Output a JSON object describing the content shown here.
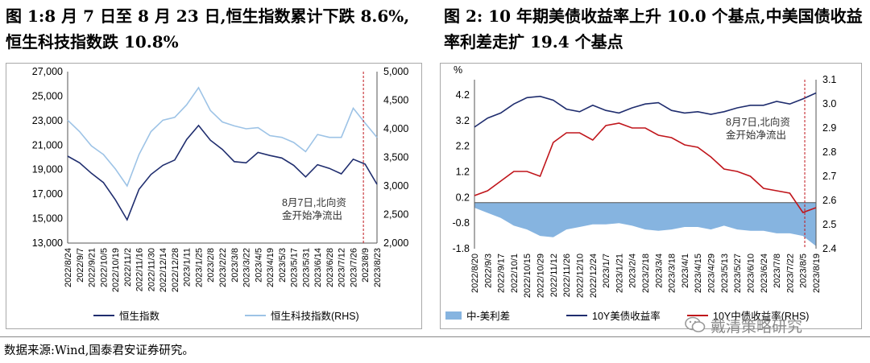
{
  "titles": {
    "left": "图 1:8 月 7 日至 8 月 23 日,恒生指数累计下跌 8.6%,恒生科技指数跌 10.8%",
    "right": "图 2:  10 年期美债收益率上升 10.0 个基点,中美国债收益率利差走扩 19.4 个基点"
  },
  "source": "数据来源:Wind,国泰君安证券研究。",
  "watermark": "戴清策略研究",
  "chart_data": [
    {
      "type": "line",
      "dates": [
        "2022/8/24",
        "2022/9/7",
        "2022/9/21",
        "2022/10/5",
        "2022/10/19",
        "2022/11/2",
        "2022/11/16",
        "2022/11/30",
        "2022/12/14",
        "2022/12/28",
        "2023/1/11",
        "2023/1/25",
        "2023/2/8",
        "2023/2/22",
        "2023/3/8",
        "2023/3/22",
        "2023/4/5",
        "2023/4/19",
        "2023/5/3",
        "2023/5/17",
        "2023/5/31",
        "2023/6/14",
        "2023/6/28",
        "2023/7/12",
        "2023/7/26",
        "2023/8/9",
        "2023/8/23"
      ],
      "series": [
        {
          "name": "恒生指数",
          "axis": "left",
          "color": "#1f2d6e",
          "values": [
            20100,
            19550,
            18700,
            17950,
            16550,
            14900,
            17400,
            18600,
            19350,
            19780,
            21450,
            22600,
            21400,
            20650,
            19650,
            19550,
            20400,
            20150,
            19950,
            19350,
            18400,
            19400,
            19100,
            18650,
            19850,
            19450,
            17800
          ]
        },
        {
          "name": "恒生科技指数(RHS)",
          "axis": "right",
          "color": "#9dc3e6",
          "values": [
            4150,
            3950,
            3700,
            3550,
            3300,
            3000,
            3550,
            3950,
            4150,
            4200,
            4420,
            4720,
            4320,
            4120,
            4050,
            4000,
            4020,
            3880,
            3850,
            3760,
            3600,
            3900,
            3850,
            3850,
            4360,
            4100,
            3850
          ]
        }
      ],
      "ylim_left": [
        13000,
        27000
      ],
      "ylim_right": [
        2000,
        5000
      ],
      "yticks_left": [
        "13,000",
        "15,000",
        "17,000",
        "19,000",
        "21,000",
        "23,000",
        "25,000",
        "27,000"
      ],
      "yticks_right": [
        "2,000",
        "2,500",
        "3,000",
        "3,500",
        "4,000",
        "4,500",
        "5,000"
      ],
      "vline_date": "2023/8/7",
      "annotation": [
        "8月7日,北向资",
        "金开始净流出"
      ]
    },
    {
      "type": "line",
      "dates": [
        "2022/8/20",
        "2022/9/3",
        "2022/9/17",
        "2022/10/1",
        "2022/10/15",
        "2022/10/29",
        "2022/11/12",
        "2022/11/26",
        "2022/12/10",
        "2022/12/24",
        "2023/1/7",
        "2023/1/21",
        "2023/2/4",
        "2023/2/18",
        "2023/3/4",
        "2023/3/18",
        "2023/4/1",
        "2023/4/15",
        "2023/4/29",
        "2023/5/13",
        "2023/5/27",
        "2023/6/10",
        "2023/6/24",
        "2023/7/8",
        "2023/7/22",
        "2023/8/5",
        "2023/8/19"
      ],
      "y_unit_left": "%",
      "series": [
        {
          "name": "中-美利差",
          "axis": "left",
          "kind": "area",
          "color": "#86b4e0",
          "values": [
            -0.2,
            -0.4,
            -0.6,
            -0.9,
            -1.05,
            -1.3,
            -1.35,
            -1.05,
            -0.95,
            -0.85,
            -0.85,
            -0.8,
            -0.9,
            -1.05,
            -1.1,
            -1.05,
            -0.95,
            -0.95,
            -1.05,
            -0.9,
            -1.05,
            -1.1,
            -1.1,
            -1.2,
            -1.2,
            -1.3,
            -1.7
          ]
        },
        {
          "name": "10Y美债收益率",
          "axis": "left",
          "kind": "line",
          "color": "#1f2d6e",
          "values": [
            2.95,
            3.3,
            3.5,
            3.85,
            4.1,
            4.15,
            4.0,
            3.65,
            3.55,
            3.8,
            3.6,
            3.5,
            3.7,
            3.85,
            3.9,
            3.6,
            3.5,
            3.55,
            3.45,
            3.55,
            3.7,
            3.8,
            3.8,
            3.95,
            3.85,
            4.05,
            4.28
          ]
        },
        {
          "name": "10Y中债收益率(RHS)",
          "axis": "right",
          "kind": "line",
          "color": "#c0151b",
          "values": [
            2.62,
            2.64,
            2.68,
            2.72,
            2.72,
            2.7,
            2.84,
            2.88,
            2.88,
            2.85,
            2.91,
            2.92,
            2.9,
            2.9,
            2.87,
            2.86,
            2.83,
            2.82,
            2.78,
            2.73,
            2.72,
            2.7,
            2.65,
            2.64,
            2.63,
            2.55,
            2.57
          ]
        }
      ],
      "ylim_left": [
        -1.8,
        4.8
      ],
      "ylim_right": [
        2.4,
        3.1
      ],
      "yticks_left": [
        "-1.8",
        "-0.8",
        "0.2",
        "1.2",
        "2.2",
        "3.2",
        "4.2"
      ],
      "yticks_right": [
        "2.4",
        "2.5",
        "2.6",
        "2.7",
        "2.8",
        "2.9",
        "3.0",
        "3.1"
      ],
      "vline_date": "2023/8/7",
      "annotation": [
        "8月7日,北向资",
        "金开始净流出"
      ]
    }
  ]
}
